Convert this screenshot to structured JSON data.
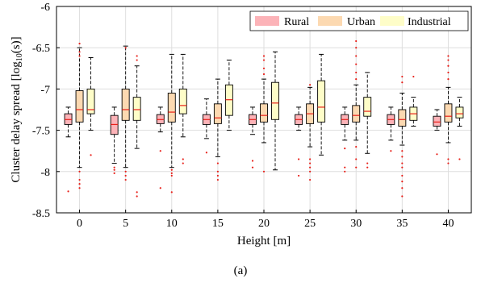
{
  "chart_data": {
    "type": "box",
    "ylabel_text": "Cluster delay spread [log",
    "ylabel_sub": "10",
    "ylabel_tail": "(s)]",
    "xlabel": "Height [m]",
    "caption": "(a)",
    "ylim": [
      -8.5,
      -6
    ],
    "yticks": [
      -8.5,
      -8,
      -7.5,
      -7,
      -6.5,
      -6
    ],
    "ytick_labels": [
      "-8.5",
      "-8",
      "-7.5",
      "-7",
      "-6.5",
      "-6"
    ],
    "categories": [
      "0",
      "5",
      "10",
      "15",
      "20",
      "25",
      "30",
      "35",
      "40"
    ],
    "grid": true,
    "legend_position": "top-right",
    "median_color": "#e8201a",
    "outlier_color": "#e8201a",
    "series": [
      {
        "name": "Rural",
        "color": "#fcb3b8",
        "boxes": [
          {
            "whisker_low": -7.58,
            "q1": -7.43,
            "median": -7.37,
            "q3": -7.3,
            "whisker_high": -7.22,
            "outliers": [
              -8.24
            ]
          },
          {
            "whisker_low": -7.9,
            "q1": -7.55,
            "median": -7.43,
            "q3": -7.32,
            "whisker_high": -7.22,
            "outliers": [
              -7.98,
              -8.02,
              -7.95
            ]
          },
          {
            "whisker_low": -7.52,
            "q1": -7.42,
            "median": -7.37,
            "q3": -7.31,
            "whisker_high": -7.22,
            "outliers": [
              -7.75,
              -8.2
            ]
          },
          {
            "whisker_low": -7.6,
            "q1": -7.43,
            "median": -7.37,
            "q3": -7.31,
            "whisker_high": -7.12,
            "outliers": [
              -7.77
            ]
          },
          {
            "whisker_low": -7.55,
            "q1": -7.43,
            "median": -7.37,
            "q3": -7.31,
            "whisker_high": -7.22,
            "outliers": [
              -7.87,
              -7.95
            ]
          },
          {
            "whisker_low": -7.5,
            "q1": -7.43,
            "median": -7.37,
            "q3": -7.31,
            "whisker_high": -7.22,
            "outliers": [
              -7.85,
              -8.05
            ]
          },
          {
            "whisker_low": -7.62,
            "q1": -7.43,
            "median": -7.37,
            "q3": -7.31,
            "whisker_high": -7.22,
            "outliers": [
              -7.72,
              -7.95,
              -8.0
            ]
          },
          {
            "whisker_low": -7.62,
            "q1": -7.43,
            "median": -7.37,
            "q3": -7.31,
            "whisker_high": -7.22,
            "outliers": [
              -7.75
            ]
          },
          {
            "whisker_low": -7.5,
            "q1": -7.45,
            "median": -7.4,
            "q3": -7.33,
            "whisker_high": -7.25,
            "outliers": [
              -7.79
            ]
          }
        ]
      },
      {
        "name": "Urban",
        "color": "#fcd9b1",
        "boxes": [
          {
            "whisker_low": -7.95,
            "q1": -7.4,
            "median": -7.25,
            "q3": -7.02,
            "whisker_high": -6.5,
            "outliers": [
              -6.45,
              -6.55,
              -6.6,
              -8.0,
              -8.1,
              -8.15,
              -8.2
            ]
          },
          {
            "whisker_low": -7.95,
            "q1": -7.38,
            "median": -7.25,
            "q3": -7.0,
            "whisker_high": -6.48,
            "outliers": [
              -6.5,
              -8.0,
              -8.05,
              -8.1
            ]
          },
          {
            "whisker_low": -7.95,
            "q1": -7.4,
            "median": -7.28,
            "q3": -7.05,
            "whisker_high": -6.58,
            "outliers": [
              -7.98,
              -8.02,
              -8.05,
              -8.25
            ]
          },
          {
            "whisker_low": -7.82,
            "q1": -7.42,
            "median": -7.35,
            "q3": -7.18,
            "whisker_high": -6.88,
            "outliers": [
              -7.9,
              -8.0,
              -8.05,
              -8.1
            ]
          },
          {
            "whisker_low": -7.65,
            "q1": -7.4,
            "median": -7.32,
            "q3": -7.18,
            "whisker_high": -6.88,
            "outliers": [
              -6.6,
              -6.65,
              -6.75,
              -6.82,
              -8.0
            ]
          },
          {
            "whisker_low": -7.7,
            "q1": -7.42,
            "median": -7.3,
            "q3": -7.18,
            "whisker_high": -6.98,
            "outliers": [
              -6.95,
              -7.85,
              -7.9,
              -7.95,
              -8.0,
              -8.1
            ]
          },
          {
            "whisker_low": -7.62,
            "q1": -7.4,
            "median": -7.32,
            "q3": -7.2,
            "whisker_high": -6.95,
            "outliers": [
              -6.42,
              -6.5,
              -6.6,
              -6.7,
              -6.8,
              -6.88,
              -7.7,
              -7.85,
              -7.95
            ]
          },
          {
            "whisker_low": -7.68,
            "q1": -7.45,
            "median": -7.37,
            "q3": -7.25,
            "whisker_high": -7.05,
            "outliers": [
              -6.85,
              -6.92,
              -7.75,
              -7.82,
              -7.9,
              -7.95,
              -8.05,
              -8.12,
              -8.2,
              -8.3
            ]
          },
          {
            "whisker_low": -7.65,
            "q1": -7.4,
            "median": -7.33,
            "q3": -7.18,
            "whisker_high": -6.98,
            "outliers": [
              -6.6,
              -6.65,
              -6.72,
              -6.8,
              -6.88,
              -7.85,
              -7.9
            ]
          }
        ]
      },
      {
        "name": "Industrial",
        "color": "#fefdc8",
        "boxes": [
          {
            "whisker_low": -7.5,
            "q1": -7.3,
            "median": -7.25,
            "q3": -7.0,
            "whisker_high": -6.62,
            "outliers": [
              -7.8
            ]
          },
          {
            "whisker_low": -7.72,
            "q1": -7.38,
            "median": -7.25,
            "q3": -7.1,
            "whisker_high": -6.72,
            "outliers": [
              -6.6,
              -6.65,
              -8.25,
              -8.3
            ]
          },
          {
            "whisker_low": -7.58,
            "q1": -7.3,
            "median": -7.2,
            "q3": -7.0,
            "whisker_high": -6.58,
            "outliers": [
              -7.85,
              -7.9
            ]
          },
          {
            "whisker_low": -7.5,
            "q1": -7.32,
            "median": -7.13,
            "q3": -6.95,
            "whisker_high": -6.65,
            "outliers": []
          },
          {
            "whisker_low": -7.98,
            "q1": -7.37,
            "median": -7.17,
            "q3": -6.92,
            "whisker_high": -6.55,
            "outliers": []
          },
          {
            "whisker_low": -7.8,
            "q1": -7.4,
            "median": -7.22,
            "q3": -6.9,
            "whisker_high": -6.58,
            "outliers": []
          },
          {
            "whisker_low": -7.78,
            "q1": -7.33,
            "median": -7.27,
            "q3": -7.1,
            "whisker_high": -6.8,
            "outliers": [
              -7.9,
              -7.95
            ]
          },
          {
            "whisker_low": -7.45,
            "q1": -7.38,
            "median": -7.3,
            "q3": -7.22,
            "whisker_high": -7.1,
            "outliers": [
              -6.85
            ]
          },
          {
            "whisker_low": -7.45,
            "q1": -7.35,
            "median": -7.3,
            "q3": -7.22,
            "whisker_high": -7.1,
            "outliers": [
              -7.85
            ]
          }
        ]
      }
    ]
  }
}
